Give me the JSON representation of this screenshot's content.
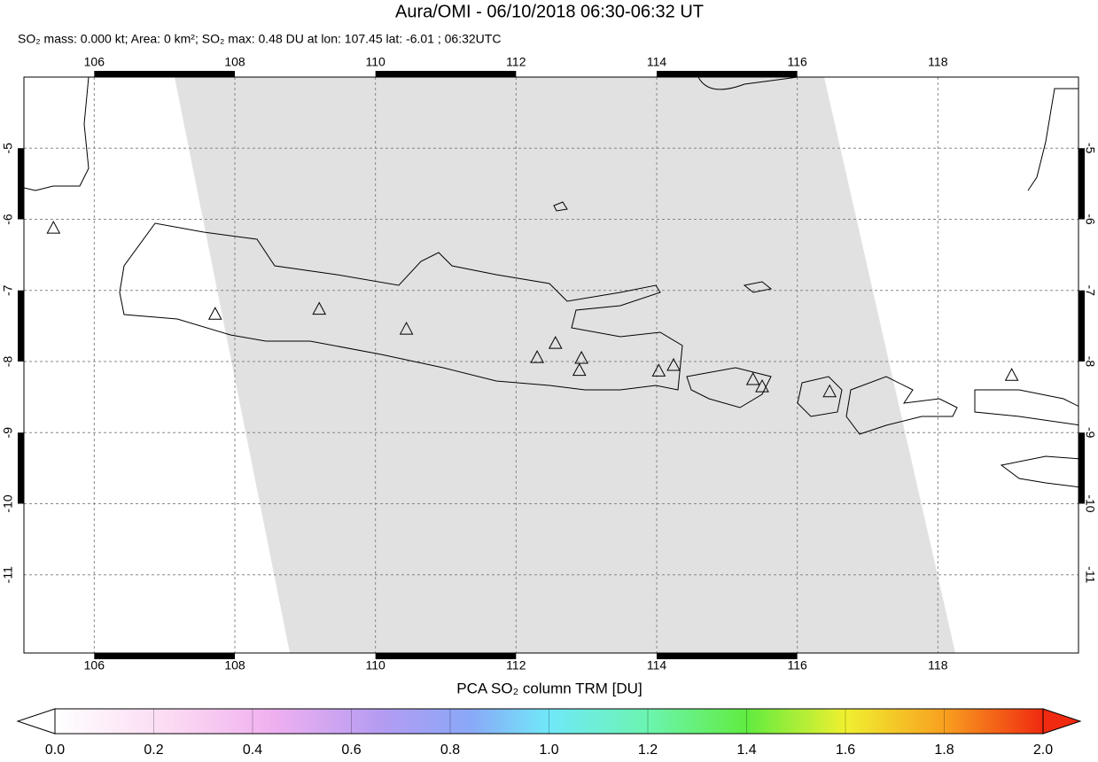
{
  "title": "Aura/OMI - 06/10/2018 06:30-06:32 UT",
  "subtitle": "SO₂ mass: 0.000 kt; Area: 0 km²; SO₂ max: 0.48 DU at lon: 107.45 lat: -6.01 ; 06:32UTC",
  "map": {
    "xlim": [
      105,
      120
    ],
    "ylim": [
      -12.1,
      -4
    ],
    "xticks": [
      106,
      108,
      110,
      112,
      114,
      116,
      118
    ],
    "yticks": [
      -5,
      -6,
      -7,
      -8,
      -9,
      -10,
      -11
    ],
    "volcanoes": [
      {
        "lon": 105.42,
        "lat": -6.12
      },
      {
        "lon": 107.72,
        "lat": -7.33
      },
      {
        "lon": 109.2,
        "lat": -7.26
      },
      {
        "lon": 110.44,
        "lat": -7.54
      },
      {
        "lon": 112.3,
        "lat": -7.94
      },
      {
        "lon": 112.56,
        "lat": -7.74
      },
      {
        "lon": 112.93,
        "lat": -7.95
      },
      {
        "lon": 112.9,
        "lat": -8.12
      },
      {
        "lon": 114.03,
        "lat": -8.13
      },
      {
        "lon": 114.24,
        "lat": -8.05
      },
      {
        "lon": 115.37,
        "lat": -8.25
      },
      {
        "lon": 115.5,
        "lat": -8.35
      },
      {
        "lon": 116.46,
        "lat": -8.42
      },
      {
        "lon": 119.05,
        "lat": -8.19
      }
    ]
  },
  "colorbar": {
    "label": "PCA SO₂ column TRM [DU]",
    "lim": [
      0,
      2
    ],
    "ticks": [
      {
        "value": 0,
        "label": "0.0"
      },
      {
        "value": 0.2,
        "label": "0.2"
      },
      {
        "value": 0.4,
        "label": "0.4"
      },
      {
        "value": 0.6,
        "label": "0.6"
      },
      {
        "value": 0.8,
        "label": "0.8"
      },
      {
        "value": 1,
        "label": "1.0"
      },
      {
        "value": 1.2,
        "label": "1.2"
      },
      {
        "value": 1.4,
        "label": "1.4"
      },
      {
        "value": 1.6,
        "label": "1.6"
      },
      {
        "value": 1.8,
        "label": "1.8"
      },
      {
        "value": 2,
        "label": "2.0"
      }
    ]
  }
}
